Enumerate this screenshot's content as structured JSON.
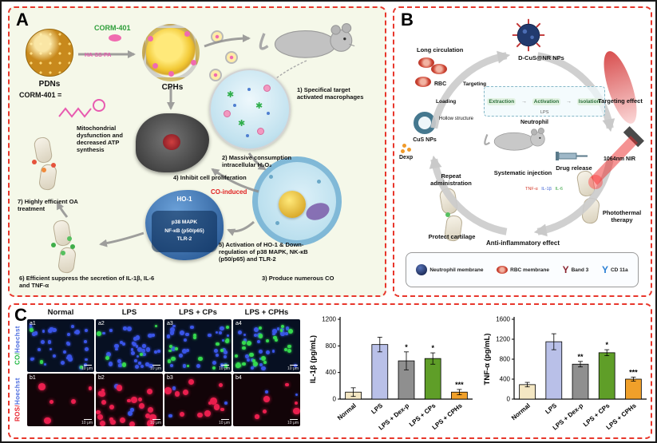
{
  "figure": {
    "panelA_label": "A",
    "panelB_label": "B",
    "panelC_label": "C"
  },
  "panelA": {
    "corm_top": "CORM-401",
    "linker": "HA-SS-PA",
    "pdns": "PDNs",
    "corm_eq": "CORM-401 =",
    "cphs": "CPHs",
    "mito": "Mitochondrial dysfunction and decreased ATP synthesis",
    "step1": "1) Specifical target activated macrophages",
    "step2": "2) Massive consumption intracellular H₂O₂",
    "step3": "3) Produce numerous CO",
    "step4": "4) Inhibit cell proliferation",
    "step5": "5) Activation of HO-1 & Down-regulation of p38 MAPK, NK-κB (p50/p65) and TLR-2",
    "step6": "6) Efficient suppress the secretion of IL-1β, IL-6 and TNF-α",
    "step7": "7) Highly efficient OA treatment",
    "co_induced": "CO-induced",
    "ho1": "HO-1",
    "pathway1": "p38  MAPK",
    "pathway2": "NF-κB (p50/p65)",
    "pathway3": "TLR-2"
  },
  "panelB": {
    "long_circulation": "Long circulation",
    "dcus": "D-CuS@NR NPs",
    "rbc": "RBC",
    "targeting": "Targeting",
    "loading": "Loading",
    "cus_nps": "CuS NPs",
    "hollow": "Hollow structure",
    "extraction": "Extraction",
    "activation": "Activation",
    "isolation": "Isolation",
    "lps": "LPS",
    "neutrophil": "Neutrophil",
    "dexp": "Dexp",
    "targeting_effect": "Targeting effect",
    "repeat_admin": "Repeat administration",
    "systematic_injection": "Systematic injection",
    "drug_release": "Drug release",
    "nir": "1064nm NIR",
    "photothermal": "Photothermal therapy",
    "protect_cartilage": "Protect cartilage",
    "anti_inflammatory": "Anti-inflammatory effect",
    "cytokines": [
      "TNF-α",
      "IL-1β",
      "IL-6"
    ],
    "legend": [
      {
        "label": "Neutrophil membrane"
      },
      {
        "label": "RBC membrane"
      },
      {
        "label": "Band 3"
      },
      {
        "label": "CD 11a"
      }
    ]
  },
  "panelC": {
    "col_headers": [
      "Normal",
      "LPS",
      "LPS + CPs",
      "LPS + CPHs"
    ],
    "row_a": {
      "stain": "CO/",
      "counter": "Hoechst"
    },
    "row_b": {
      "stain": "ROS/",
      "counter": "Hoechst"
    },
    "scale": "10 μm",
    "cells": [
      {
        "id": "a1",
        "row": 0,
        "col": 0,
        "blue": 34,
        "green": 3,
        "red": 0
      },
      {
        "id": "a2",
        "row": 0,
        "col": 1,
        "blue": 36,
        "green": 5,
        "red": 0
      },
      {
        "id": "a3",
        "row": 0,
        "col": 2,
        "blue": 30,
        "green": 16,
        "red": 0
      },
      {
        "id": "a4",
        "row": 0,
        "col": 3,
        "blue": 26,
        "green": 24,
        "red": 0
      },
      {
        "id": "b1",
        "row": 1,
        "col": 0,
        "blue": 0,
        "green": 0,
        "red": 5
      },
      {
        "id": "b2",
        "row": 1,
        "col": 1,
        "blue": 4,
        "green": 0,
        "red": 22
      },
      {
        "id": "b3",
        "row": 1,
        "col": 2,
        "blue": 3,
        "green": 0,
        "red": 12
      },
      {
        "id": "b4",
        "row": 1,
        "col": 3,
        "blue": 2,
        "green": 0,
        "red": 6
      }
    ]
  },
  "chart_data": [
    {
      "type": "bar",
      "ylabel": "IL-1β (pg/mL)",
      "categories": [
        "Normal",
        "LPS",
        "LPS + Dex-p",
        "LPS + CPs",
        "LPS + CPHs"
      ],
      "values": [
        105,
        820,
        575,
        610,
        105
      ],
      "errors": [
        65,
        110,
        135,
        85,
        40
      ],
      "significance": [
        "",
        "",
        "*",
        "*",
        "***"
      ],
      "ylim": [
        0,
        1200
      ],
      "yticks": [
        0,
        400,
        800,
        1200
      ],
      "bar_colors": [
        "#f4e7c3",
        "#b9c0e8",
        "#8f8f8f",
        "#5f9e28",
        "#f0a02a"
      ],
      "grid": false,
      "legend_position": "none"
    },
    {
      "type": "bar",
      "ylabel": "TNF-α (pg/mL)",
      "categories": [
        "Normal",
        "LPS",
        "LPS + Dex-p",
        "LPS + CPs",
        "LPS + CPHs"
      ],
      "values": [
        290,
        1150,
        700,
        930,
        400
      ],
      "errors": [
        45,
        160,
        55,
        60,
        40
      ],
      "significance": [
        "",
        "",
        "**",
        "*",
        "***"
      ],
      "ylim": [
        0,
        1600
      ],
      "yticks": [
        0,
        400,
        800,
        1200,
        1600
      ],
      "bar_colors": [
        "#f4e7c3",
        "#b9c0e8",
        "#8f8f8f",
        "#5f9e28",
        "#f0a02a"
      ],
      "grid": false,
      "legend_position": "none"
    }
  ]
}
